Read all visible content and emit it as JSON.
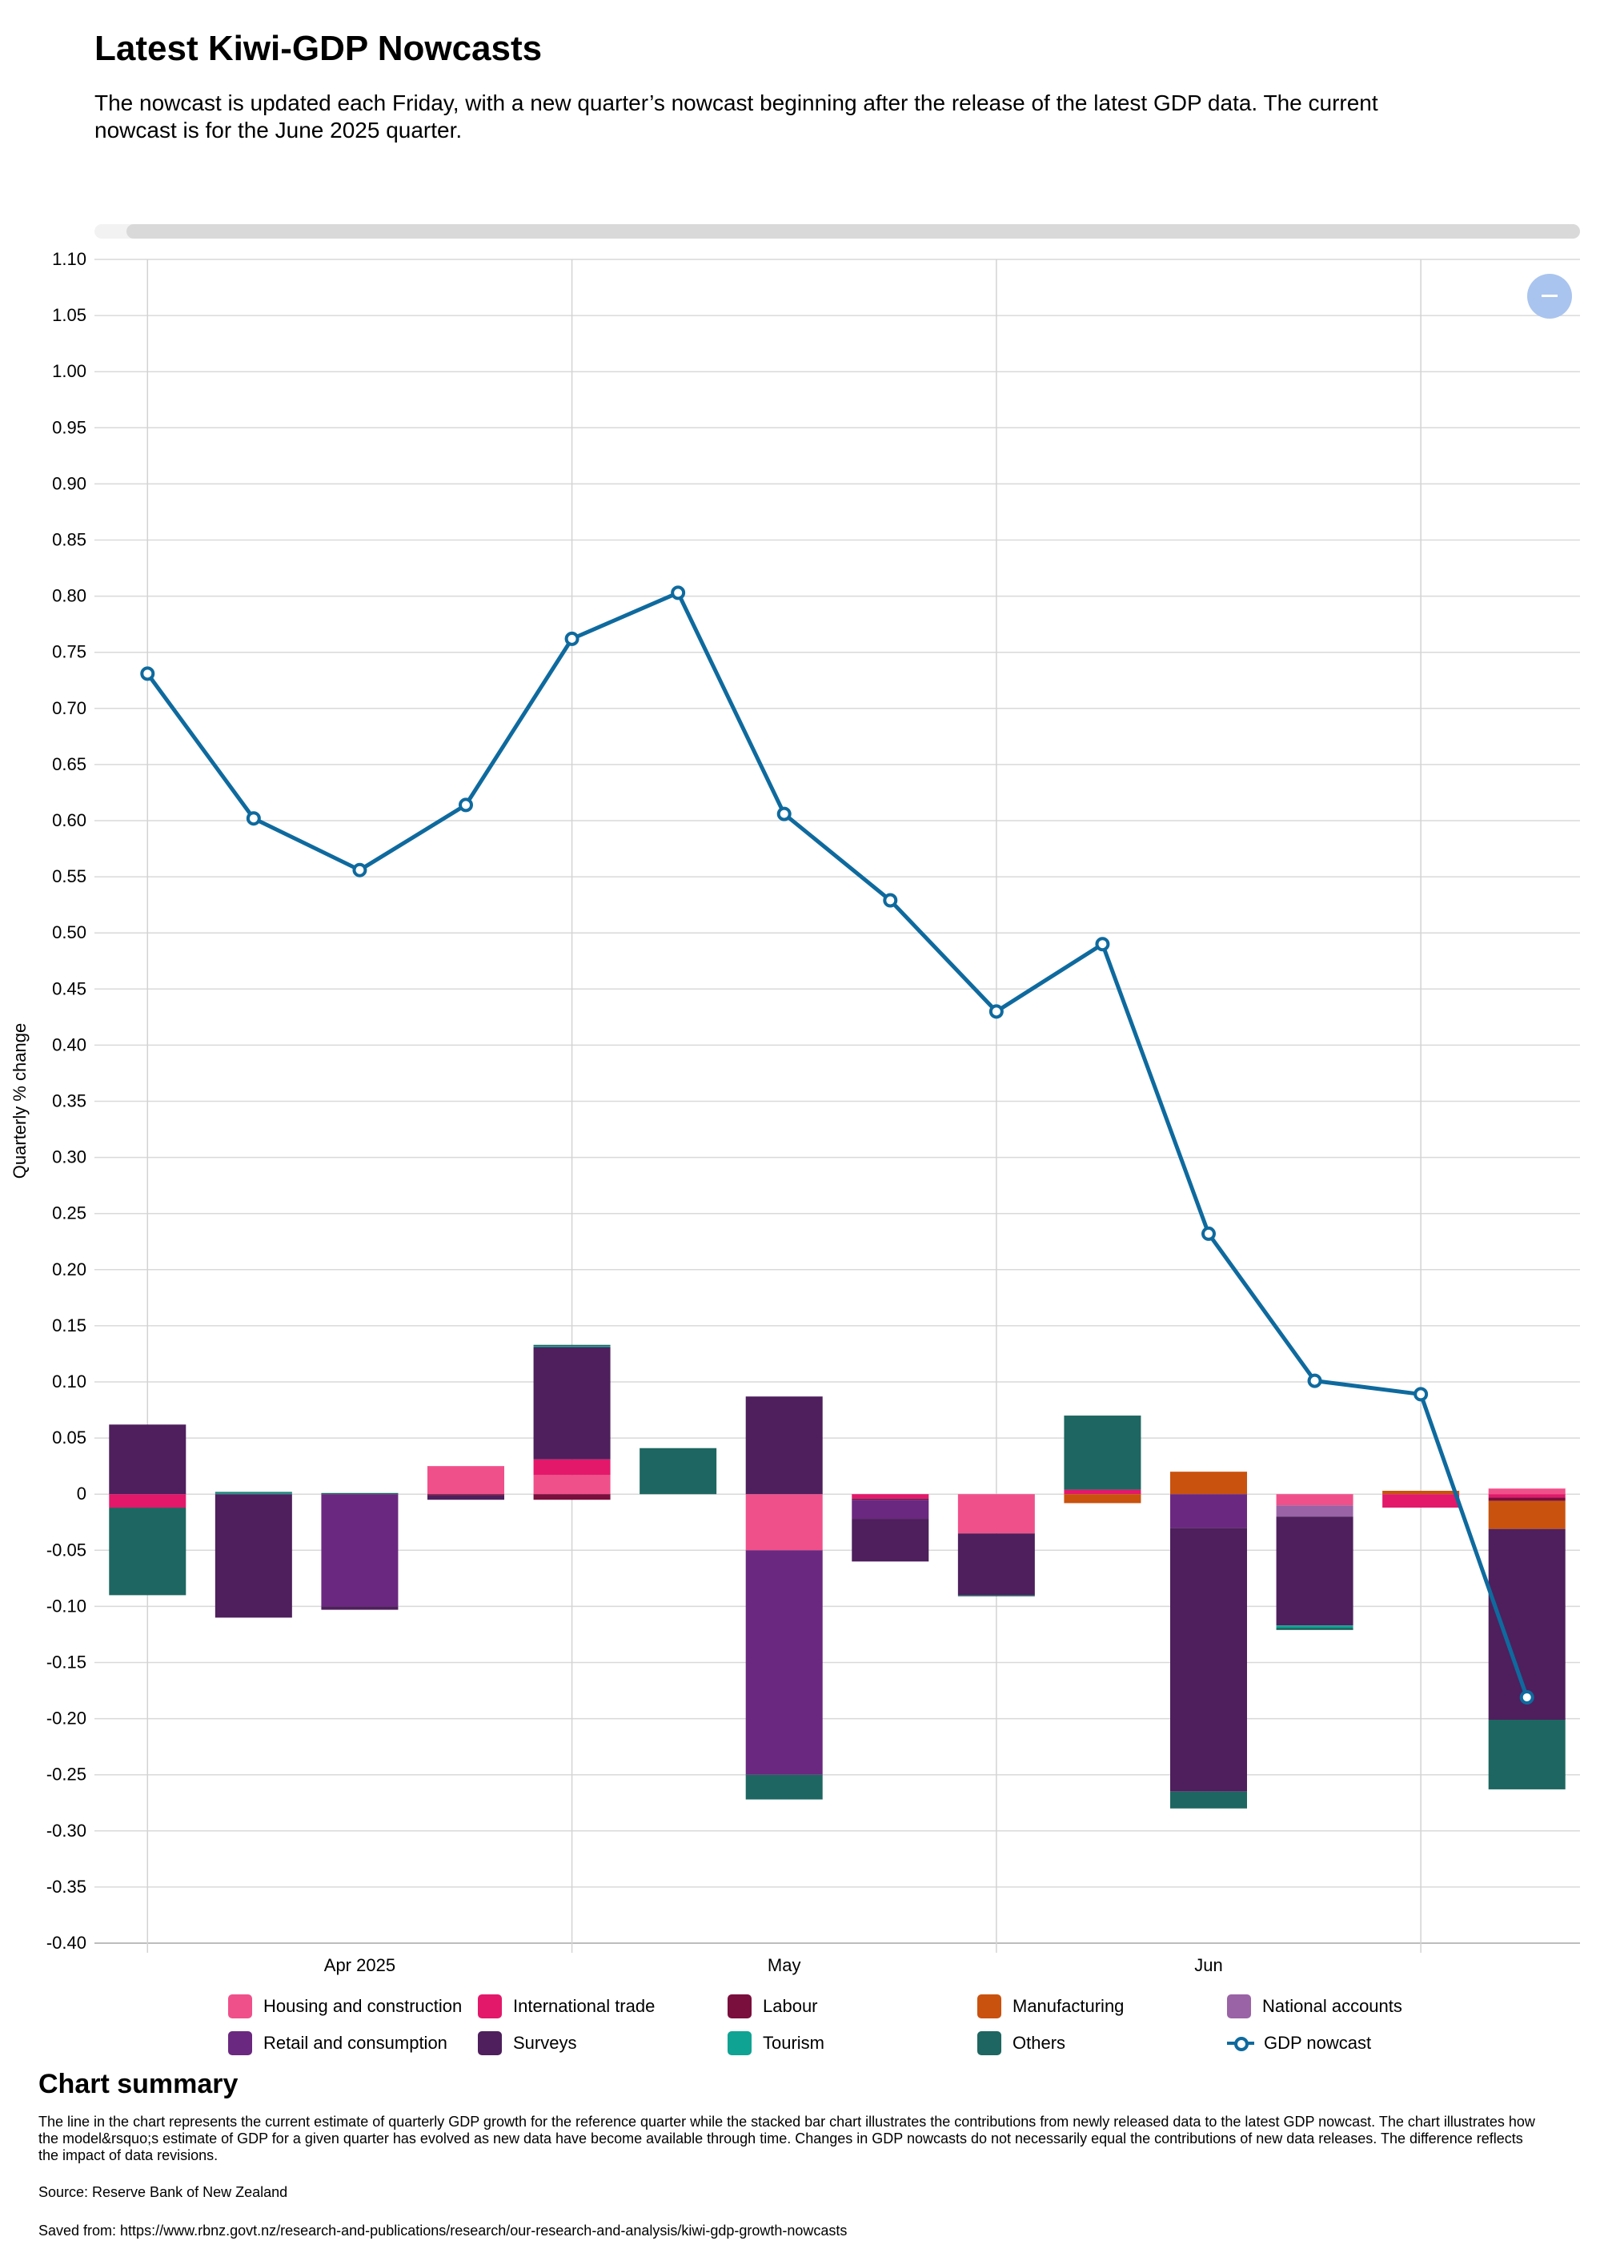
{
  "title": "Latest Kiwi-GDP Nowcasts",
  "subtitle": "The nowcast is updated each Friday, with a new quarter’s nowcast beginning after the release of the latest GDP data. The current nowcast is for the June 2025 quarter.",
  "summary": {
    "title": "Chart summary",
    "text": "The line in the chart represents the current estimate of quarterly GDP growth for the reference quarter while the stacked bar chart illustrates the contributions from newly released data to the latest GDP nowcast. The chart illustrates how the model&rsquo;s estimate of GDP for a given quarter has evolved as new data have become available through time. Changes in GDP nowcasts do not necessarily equal the contributions of new data releases. The difference reflects the impact of data revisions.",
    "source": "Source: Reserve Bank of New Zealand",
    "saved": "Saved from: https://www.rbnz.govt.nz/research-and-publications/research/our-research-and-analysis/kiwi-gdp-growth-nowcasts"
  },
  "chart_data": {
    "type": "bar",
    "stacked": true,
    "ylabel": "Quarterly % change",
    "ylim": [
      -0.4,
      1.1
    ],
    "yticks": [
      1.1,
      1.05,
      1.0,
      0.95,
      0.9,
      0.85,
      0.8,
      0.75,
      0.7,
      0.65,
      0.6,
      0.55,
      0.5,
      0.45,
      0.4,
      0.35,
      0.3,
      0.25,
      0.2,
      0.15,
      0.1,
      0.05,
      0,
      -0.05,
      -0.1,
      -0.15,
      -0.2,
      -0.25,
      -0.3,
      -0.35,
      -0.4
    ],
    "ytick_labels": [
      "1.10",
      "1.05",
      "1.00",
      "0.95",
      "0.90",
      "0.85",
      "0.80",
      "0.75",
      "0.70",
      "0.65",
      "0.60",
      "0.55",
      "0.50",
      "0.45",
      "0.40",
      "0.35",
      "0.30",
      "0.25",
      "0.20",
      "0.15",
      "0.10",
      "0.05",
      "0",
      "-0.05",
      "-0.10",
      "-0.15",
      "-0.20",
      "-0.25",
      "-0.30",
      "-0.35",
      "-0.40"
    ],
    "xticks": [
      {
        "label": "Apr 2025",
        "pos": 2.5
      },
      {
        "label": "May",
        "pos": 6.5
      },
      {
        "label": "Jun",
        "pos": 10.5
      }
    ],
    "vlines": [
      0.5,
      4.5,
      8.5,
      12.5
    ],
    "periods": 14,
    "grid": true,
    "legend_position": "bottom",
    "series": [
      {
        "name": "Housing and construction",
        "color": "#f0508a",
        "values": [
          0,
          0,
          0,
          0.025,
          0.017,
          0,
          -0.05,
          0,
          -0.035,
          0,
          0,
          -0.01,
          0,
          0.005
        ]
      },
      {
        "name": "International trade",
        "color": "#e3186a",
        "values": [
          -0.012,
          0,
          0,
          0,
          0.014,
          0,
          0,
          -0.004,
          0,
          0.004,
          0,
          0,
          -0.012,
          -0.003
        ]
      },
      {
        "name": "Labour",
        "color": "#7a0e3c",
        "values": [
          0,
          0,
          0,
          -0.001,
          -0.005,
          0,
          0,
          -0.001,
          0,
          0,
          0,
          0,
          0,
          -0.003
        ]
      },
      {
        "name": "Manufacturing",
        "color": "#c9520e",
        "values": [
          0,
          0,
          0,
          0,
          0,
          0,
          0,
          0,
          0,
          -0.008,
          0.02,
          0,
          0.003,
          -0.025
        ]
      },
      {
        "name": "National accounts",
        "color": "#9a63a6",
        "values": [
          0,
          0,
          0,
          0,
          0,
          0,
          0,
          0,
          0,
          0,
          0,
          -0.01,
          0,
          0
        ]
      },
      {
        "name": "Retail and consumption",
        "color": "#6b2880",
        "values": [
          0,
          0,
          -0.1,
          0,
          0,
          0,
          -0.2,
          -0.017,
          0,
          0,
          -0.03,
          0,
          0,
          0
        ]
      },
      {
        "name": "Surveys",
        "color": "#4e1f5c",
        "values": [
          0.062,
          -0.11,
          -0.003,
          -0.004,
          0.1,
          0,
          0.087,
          -0.038,
          -0.055,
          0,
          -0.235,
          -0.097,
          0,
          -0.17
        ]
      },
      {
        "name": "Tourism",
        "color": "#0fa394",
        "values": [
          0,
          0.001,
          0,
          0,
          0.001,
          0,
          0,
          0,
          0,
          0,
          0,
          -0.002,
          0,
          0
        ]
      },
      {
        "name": "Others",
        "color": "#1e6661",
        "values": [
          -0.078,
          0.001,
          0.001,
          0,
          0.001,
          0.041,
          -0.022,
          0,
          -0.001,
          0.066,
          -0.015,
          -0.002,
          0,
          -0.062
        ]
      }
    ],
    "line": {
      "name": "GDP nowcast",
      "color": "#0e6a9e",
      "values": [
        0.731,
        0.602,
        0.556,
        0.614,
        0.762,
        0.803,
        0.606,
        0.529,
        0.43,
        0.49,
        0.232,
        0.101,
        0.089,
        -0.181
      ]
    }
  }
}
